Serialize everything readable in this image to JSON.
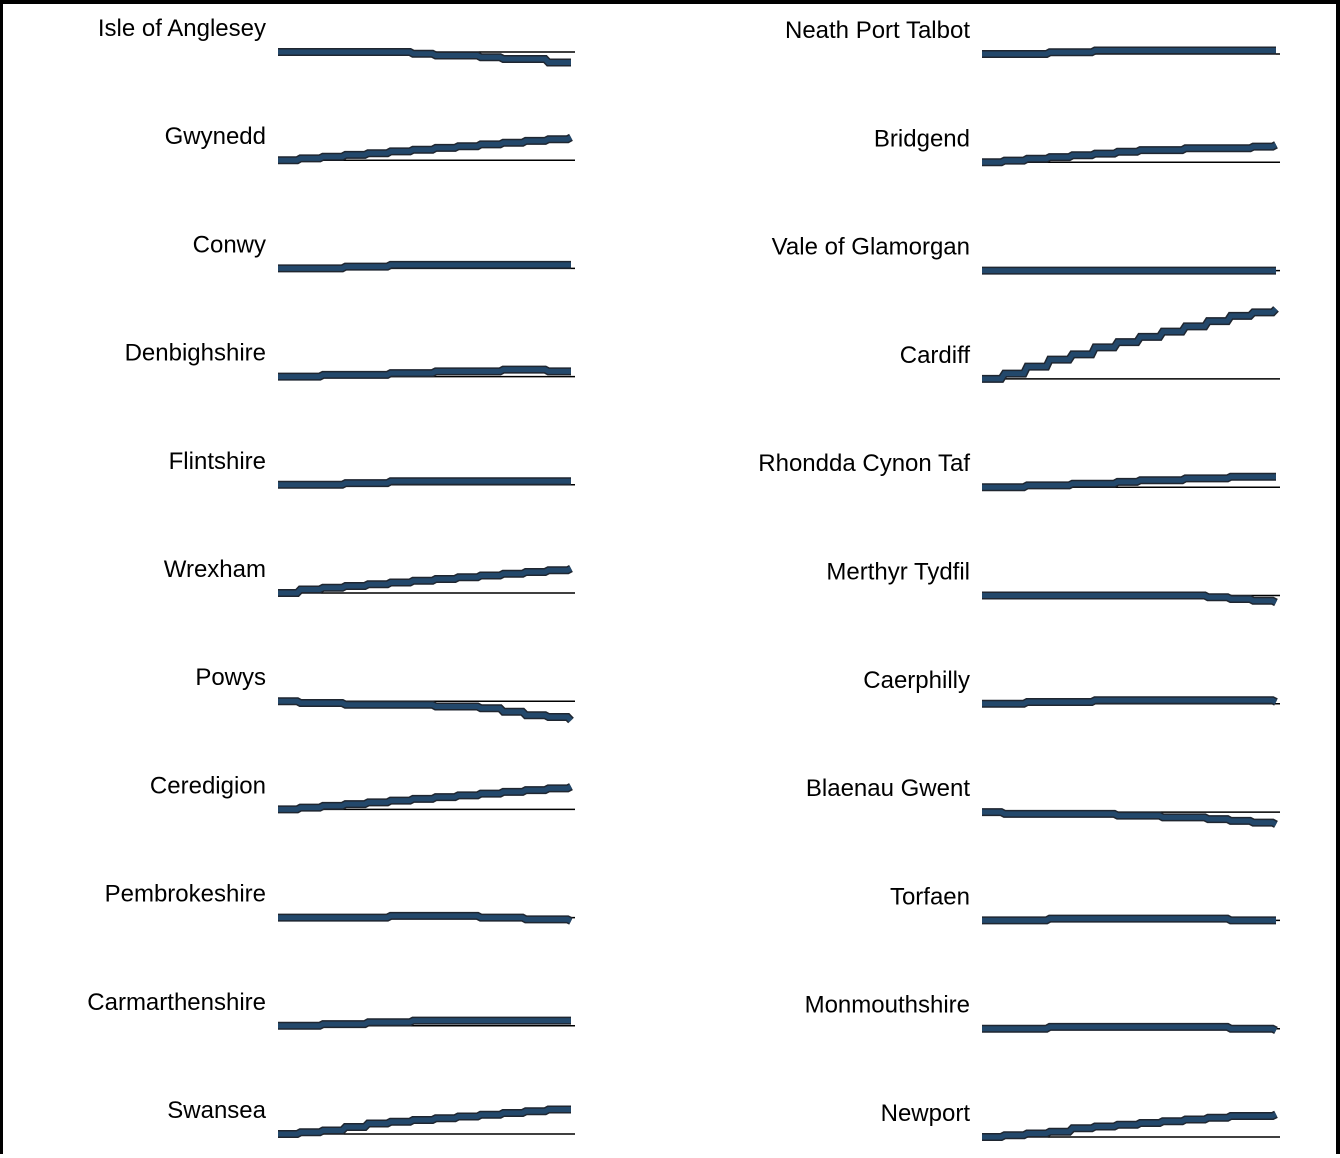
{
  "colors": {
    "line": "#23486b",
    "line_shadow": "#1f2630",
    "baseline": "#000000"
  },
  "chart_data": {
    "type": "line",
    "layout": "small-multiples",
    "columns": 2,
    "title": "",
    "xlabel": "",
    "ylabel": "",
    "grid": false,
    "legend": "none",
    "ylim": [
      -0.8,
      2.5
    ],
    "note": "Each panel shows an index relative to its first value (0 = starting level, shown by the baseline).",
    "panels": [
      {
        "name": "Isle of Anglesey",
        "values": [
          0,
          0,
          0,
          0,
          0,
          0,
          -0.05,
          -0.1,
          -0.1,
          -0.15,
          -0.2,
          -0.2,
          -0.3,
          -0.3
        ]
      },
      {
        "name": "Gwynedd",
        "values": [
          0,
          0.05,
          0.1,
          0.15,
          0.2,
          0.25,
          0.3,
          0.35,
          0.4,
          0.45,
          0.5,
          0.55,
          0.6,
          0.65
        ]
      },
      {
        "name": "Conwy",
        "values": [
          0,
          0,
          0,
          0.05,
          0.05,
          0.1,
          0.1,
          0.1,
          0.1,
          0.1,
          0.1,
          0.1,
          0.1,
          0.1
        ]
      },
      {
        "name": "Denbighshire",
        "values": [
          0,
          0,
          0.05,
          0.05,
          0.05,
          0.1,
          0.1,
          0.15,
          0.15,
          0.15,
          0.2,
          0.2,
          0.15,
          0.15
        ]
      },
      {
        "name": "Flintshire",
        "values": [
          0,
          0,
          0,
          0.05,
          0.05,
          0.1,
          0.1,
          0.1,
          0.1,
          0.1,
          0.1,
          0.1,
          0.1,
          0.1
        ]
      },
      {
        "name": "Wrexham",
        "values": [
          0,
          0.1,
          0.15,
          0.2,
          0.25,
          0.3,
          0.35,
          0.4,
          0.45,
          0.5,
          0.55,
          0.6,
          0.65,
          0.7
        ]
      },
      {
        "name": "Powys",
        "values": [
          0,
          -0.05,
          -0.05,
          -0.1,
          -0.1,
          -0.1,
          -0.1,
          -0.15,
          -0.15,
          -0.2,
          -0.3,
          -0.4,
          -0.45,
          -0.55
        ]
      },
      {
        "name": "Ceredigion",
        "values": [
          0,
          0.05,
          0.1,
          0.15,
          0.2,
          0.25,
          0.3,
          0.35,
          0.4,
          0.45,
          0.5,
          0.55,
          0.6,
          0.65
        ]
      },
      {
        "name": "Pembrokeshire",
        "values": [
          0,
          0,
          0,
          0,
          0,
          0.05,
          0.05,
          0.05,
          0.05,
          0,
          0,
          -0.05,
          -0.05,
          -0.1
        ]
      },
      {
        "name": "Carmarthenshire",
        "values": [
          0,
          0,
          0.05,
          0.05,
          0.1,
          0.1,
          0.15,
          0.15,
          0.15,
          0.15,
          0.15,
          0.15,
          0.15,
          0.15
        ]
      },
      {
        "name": "Swansea",
        "values": [
          0,
          0.05,
          0.1,
          0.2,
          0.3,
          0.35,
          0.4,
          0.45,
          0.5,
          0.55,
          0.6,
          0.65,
          0.7,
          0.7
        ]
      },
      {
        "name": "Neath Port Talbot",
        "values": [
          0,
          0,
          0,
          0.05,
          0.05,
          0.1,
          0.1,
          0.1,
          0.1,
          0.1,
          0.1,
          0.1,
          0.1,
          0.1
        ]
      },
      {
        "name": "Bridgend",
        "values": [
          0,
          0.05,
          0.1,
          0.15,
          0.2,
          0.25,
          0.3,
          0.35,
          0.35,
          0.4,
          0.4,
          0.4,
          0.45,
          0.5
        ]
      },
      {
        "name": "Vale of Glamorgan",
        "values": [
          0,
          0,
          0,
          0,
          0,
          0,
          0,
          0,
          0,
          0,
          0,
          0,
          0,
          0
        ]
      },
      {
        "name": "Cardiff",
        "values": [
          0,
          0.15,
          0.35,
          0.55,
          0.7,
          0.9,
          1.05,
          1.2,
          1.35,
          1.5,
          1.65,
          1.8,
          1.9,
          2.0
        ]
      },
      {
        "name": "Rhondda Cynon Taf",
        "values": [
          0,
          0,
          0.05,
          0.05,
          0.1,
          0.1,
          0.15,
          0.2,
          0.2,
          0.25,
          0.25,
          0.3,
          0.3,
          0.3
        ]
      },
      {
        "name": "Merthyr Tydfil",
        "values": [
          0,
          0,
          0,
          0,
          0,
          0,
          0,
          0,
          0,
          0,
          -0.05,
          -0.1,
          -0.15,
          -0.2
        ]
      },
      {
        "name": "Caerphilly",
        "values": [
          0,
          0,
          0.05,
          0.05,
          0.05,
          0.1,
          0.1,
          0.1,
          0.1,
          0.1,
          0.1,
          0.1,
          0.1,
          0.05
        ]
      },
      {
        "name": "Blaenau Gwent",
        "values": [
          0,
          -0.05,
          -0.05,
          -0.05,
          -0.05,
          -0.05,
          -0.1,
          -0.1,
          -0.15,
          -0.15,
          -0.2,
          -0.25,
          -0.3,
          -0.35
        ]
      },
      {
        "name": "Torfaen",
        "values": [
          0,
          0,
          0,
          0.05,
          0.05,
          0.05,
          0.05,
          0.05,
          0.05,
          0.05,
          0.05,
          0,
          0,
          0
        ]
      },
      {
        "name": "Monmouthshire",
        "values": [
          0,
          0,
          0,
          0.05,
          0.05,
          0.05,
          0.05,
          0.05,
          0.05,
          0.05,
          0.05,
          0,
          0,
          -0.05
        ]
      },
      {
        "name": "Newport",
        "values": [
          0,
          0.05,
          0.1,
          0.15,
          0.25,
          0.3,
          0.35,
          0.4,
          0.45,
          0.5,
          0.55,
          0.6,
          0.6,
          0.65
        ]
      }
    ]
  }
}
